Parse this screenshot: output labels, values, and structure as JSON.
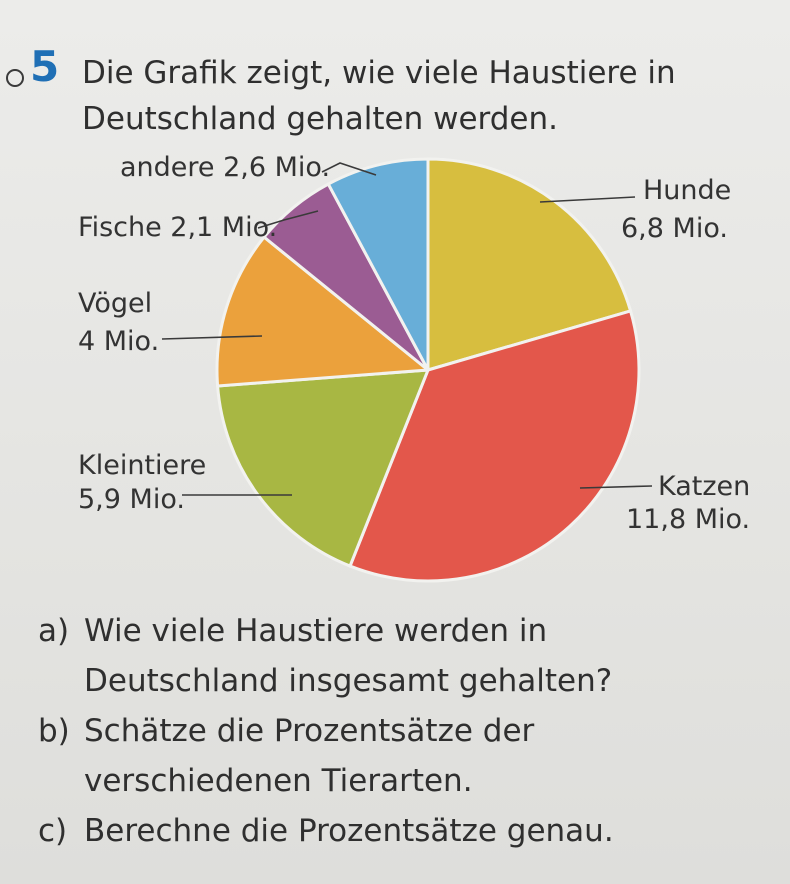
{
  "task": {
    "number": "5",
    "title_line1": "Die Grafik zeigt, wie viele Haustiere in",
    "title_line2": "Deutschland gehalten werden."
  },
  "chart_data": {
    "type": "pie",
    "unit": "Mio.",
    "slices": [
      {
        "name": "Hunde",
        "value_label": "6,8 Mio.",
        "value": 6.8,
        "color": "#d7be3f"
      },
      {
        "name": "Katzen",
        "value_label": "11,8 Mio.",
        "value": 11.8,
        "color": "#e3574b"
      },
      {
        "name": "Kleintiere",
        "value_label": "5,9 Mio.",
        "value": 5.9,
        "color": "#a8b743"
      },
      {
        "name": "Vögel",
        "value_label": "4 Mio.",
        "value": 4.0,
        "color": "#eba13c"
      },
      {
        "name": "Fische",
        "value_label": "2,1 Mio.",
        "value": 2.1,
        "color": "#9b5c93"
      },
      {
        "name": "andere",
        "value_label": "2,6 Mio.",
        "value": 2.6,
        "color": "#68aed8"
      }
    ],
    "labels": {
      "andere": "andere 2,6 Mio.",
      "fische": "Fische 2,1 Mio.",
      "hunde_name": "Hunde",
      "hunde_value": "6,8 Mio.",
      "voegel_name": "Vögel",
      "voegel_value": "4 Mio.",
      "kleintiere_name": "Kleintiere",
      "kleintiere_value": "5,9 Mio.",
      "katzen_name": "Katzen",
      "katzen_value": "11,8 Mio."
    }
  },
  "questions": [
    {
      "letter": "a)",
      "line1": "Wie viele Haustiere werden in",
      "line2": "Deutschland insgesamt gehalten?"
    },
    {
      "letter": "b)",
      "line1": "Schätze die Prozentsätze der",
      "line2": "verschiedenen Tierarten."
    },
    {
      "letter": "c)",
      "line1": "Berechne die Prozentsätze genau.",
      "line2": ""
    }
  ]
}
